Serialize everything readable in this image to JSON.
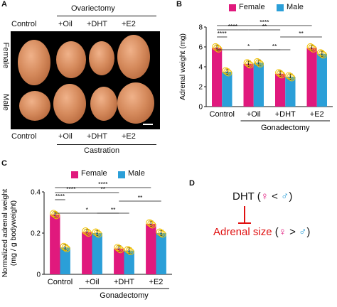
{
  "panels": {
    "a": "A",
    "b": "B",
    "c": "C",
    "d": "D"
  },
  "colors": {
    "female": "#e0197d",
    "male": "#2b9fd8",
    "dot": "#f2c200",
    "inhibit": "#e01010"
  },
  "panel_a": {
    "top_group": "Ovariectomy",
    "top_cols": [
      "Control",
      "+Oil",
      "+DHT",
      "+E2"
    ],
    "bottom_cols": [
      "Control",
      "+Oil",
      "+DHT",
      "+E2"
    ],
    "bottom_group": "Castration",
    "row_labels": [
      "Female",
      "Male"
    ]
  },
  "legend": {
    "female": "Female",
    "male": "Male"
  },
  "sig": {
    "s4": "****",
    "s2": "**",
    "s1": "*"
  },
  "panel_d": {
    "dht": "DHT",
    "size": "Adrenal size",
    "fsym": "♀",
    "msym": "♂",
    "lt": "<",
    "gt": ">",
    "lp": "(",
    "rp": ")"
  },
  "chart_data": [
    {
      "type": "bar",
      "categories": [
        "Control",
        "+Oil",
        "+DHT",
        "+E2"
      ],
      "group_label": "Gonadectomy",
      "ylabel": "Adrenal weight (mg)",
      "ylim": [
        0,
        8
      ],
      "yticks": [
        "0",
        "2",
        "4",
        "6",
        "8"
      ],
      "series": [
        {
          "name": "Female",
          "values": [
            5.9,
            4.3,
            3.3,
            5.9
          ]
        },
        {
          "name": "Male",
          "values": [
            3.5,
            4.4,
            3.0,
            5.3
          ]
        }
      ]
    },
    {
      "type": "bar",
      "categories": [
        "Control",
        "+Oil",
        "+DHT",
        "+E2"
      ],
      "group_label": "Gonadectomy",
      "ylabel": "Normalized adrenal weight",
      "ylabel2": "(mg / g bodyweight)",
      "ylim": [
        0,
        0.4
      ],
      "yticks": [
        "0",
        "0.2",
        "0.4"
      ],
      "series": [
        {
          "name": "Female",
          "values": [
            0.29,
            0.205,
            0.125,
            0.245
          ]
        },
        {
          "name": "Male",
          "values": [
            0.13,
            0.2,
            0.115,
            0.2
          ]
        }
      ]
    }
  ]
}
